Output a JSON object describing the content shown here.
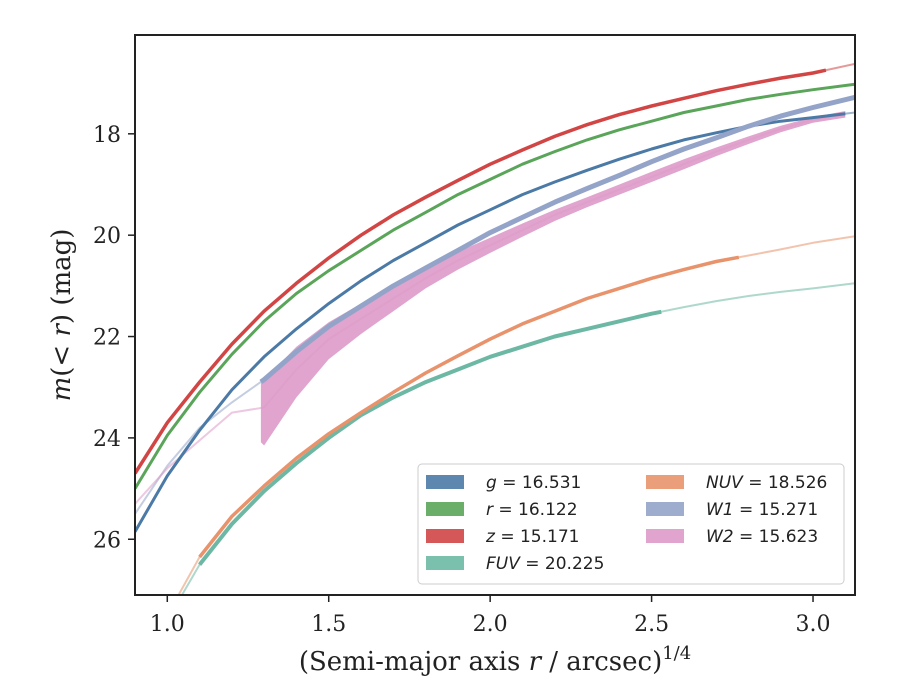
{
  "chart_data": {
    "type": "line",
    "xlabel": "(Semi-major axis r / arcsec)^{1/4}",
    "ylabel": "m(< r) (mag)",
    "xlim": [
      0.9,
      3.13
    ],
    "ylim": [
      27.1,
      16.05
    ],
    "y_inverted": true,
    "grid": false,
    "legend_position": "lower right",
    "x_ticks": [
      1.0,
      1.5,
      2.0,
      2.5,
      3.0
    ],
    "x_tick_labels": [
      "1.0",
      "1.5",
      "2.0",
      "2.5",
      "3.0"
    ],
    "y_ticks": [
      18,
      20,
      22,
      24,
      26
    ],
    "y_tick_labels": [
      "18",
      "20",
      "22",
      "24",
      "26"
    ],
    "legend_columns": 2,
    "series": [
      {
        "name": "g = 16.531",
        "legend_var": "g",
        "legend_value": "16.531",
        "color": "#4c7aa6",
        "width": 3,
        "end": 3.1,
        "x": [
          0.9,
          1.0,
          1.1,
          1.2,
          1.3,
          1.4,
          1.5,
          1.6,
          1.7,
          1.8,
          1.9,
          2.0,
          2.1,
          2.2,
          2.3,
          2.4,
          2.5,
          2.6,
          2.7,
          2.8,
          2.9,
          3.0,
          3.13
        ],
        "y": [
          25.85,
          24.75,
          23.85,
          23.05,
          22.4,
          21.85,
          21.35,
          20.9,
          20.5,
          20.15,
          19.8,
          19.5,
          19.2,
          18.95,
          18.72,
          18.5,
          18.3,
          18.12,
          17.98,
          17.85,
          17.75,
          17.68,
          17.58
        ]
      },
      {
        "name": "r = 16.122",
        "legend_var": "r",
        "legend_value": "16.122",
        "color": "#5aa55a",
        "width": 3,
        "end": 3.13,
        "x": [
          0.9,
          1.0,
          1.1,
          1.2,
          1.3,
          1.4,
          1.5,
          1.6,
          1.7,
          1.8,
          1.9,
          2.0,
          2.1,
          2.2,
          2.3,
          2.4,
          2.5,
          2.6,
          2.7,
          2.8,
          2.9,
          3.0,
          3.13
        ],
        "y": [
          25.0,
          23.95,
          23.1,
          22.35,
          21.7,
          21.15,
          20.7,
          20.3,
          19.9,
          19.55,
          19.2,
          18.9,
          18.6,
          18.35,
          18.12,
          17.92,
          17.75,
          17.58,
          17.45,
          17.32,
          17.22,
          17.13,
          17.02
        ]
      },
      {
        "name": "z = 15.171",
        "legend_var": "z",
        "legend_value": "15.171",
        "color": "#d24545",
        "width": 3.5,
        "end": 3.04,
        "x": [
          0.9,
          1.0,
          1.1,
          1.2,
          1.3,
          1.4,
          1.5,
          1.6,
          1.7,
          1.8,
          1.9,
          2.0,
          2.1,
          2.2,
          2.3,
          2.4,
          2.5,
          2.6,
          2.7,
          2.8,
          2.9,
          3.0,
          3.13
        ],
        "y": [
          24.7,
          23.7,
          22.9,
          22.15,
          21.5,
          20.95,
          20.45,
          20.0,
          19.6,
          19.25,
          18.92,
          18.6,
          18.32,
          18.05,
          17.82,
          17.62,
          17.45,
          17.3,
          17.15,
          17.02,
          16.9,
          16.8,
          16.62
        ]
      },
      {
        "name": "FUV = 20.225",
        "legend_var": "FUV",
        "legend_value": "20.225",
        "color": "#6db8a4",
        "width": 4,
        "start": 1.1,
        "end": 2.53,
        "x": [
          1.0,
          1.1,
          1.2,
          1.3,
          1.4,
          1.5,
          1.6,
          1.7,
          1.8,
          1.9,
          2.0,
          2.1,
          2.2,
          2.3,
          2.4,
          2.5,
          2.6,
          2.7,
          2.8,
          2.9,
          3.0,
          3.13
        ],
        "y": [
          27.6,
          26.5,
          25.7,
          25.05,
          24.5,
          24.0,
          23.55,
          23.2,
          22.9,
          22.65,
          22.4,
          22.2,
          22.0,
          21.85,
          21.7,
          21.55,
          21.42,
          21.3,
          21.2,
          21.12,
          21.05,
          20.95
        ]
      },
      {
        "name": "NUV = 18.526",
        "legend_var": "NUV",
        "legend_value": "18.526",
        "color": "#e8936c",
        "width": 3.5,
        "start": 1.1,
        "end": 2.77,
        "x": [
          1.0,
          1.1,
          1.2,
          1.3,
          1.4,
          1.5,
          1.6,
          1.7,
          1.8,
          1.9,
          2.0,
          2.1,
          2.2,
          2.3,
          2.4,
          2.5,
          2.6,
          2.7,
          2.8,
          2.9,
          3.0,
          3.13
        ],
        "y": [
          27.5,
          26.35,
          25.55,
          24.95,
          24.4,
          23.92,
          23.5,
          23.1,
          22.72,
          22.38,
          22.05,
          21.75,
          21.5,
          21.25,
          21.05,
          20.85,
          20.68,
          20.52,
          20.4,
          20.28,
          20.15,
          20.02
        ]
      },
      {
        "name": "W1 = 15.271",
        "legend_var": "W1",
        "legend_value": "15.271",
        "color": "#94a4c9",
        "width": 5,
        "start": 1.29,
        "x": [
          0.9,
          1.0,
          1.1,
          1.2,
          1.3,
          1.4,
          1.5,
          1.6,
          1.7,
          1.8,
          1.9,
          2.0,
          2.1,
          2.2,
          2.3,
          2.4,
          2.5,
          2.6,
          2.7,
          2.8,
          2.9,
          3.0,
          3.13
        ],
        "y": [
          25.5,
          24.55,
          23.8,
          23.3,
          22.85,
          22.3,
          21.8,
          21.4,
          21.0,
          20.65,
          20.3,
          19.95,
          19.65,
          19.35,
          19.08,
          18.82,
          18.55,
          18.3,
          18.08,
          17.85,
          17.65,
          17.48,
          17.28
        ]
      },
      {
        "name": "W2 = 15.623",
        "legend_var": "W2",
        "legend_value": "15.623",
        "color": "#dd9ac9",
        "start": 1.29,
        "end": 3.1,
        "x": [
          0.9,
          1.0,
          1.1,
          1.2,
          1.3,
          1.4,
          1.5,
          1.6,
          1.7,
          1.8,
          1.9,
          2.0,
          2.1,
          2.2,
          2.3,
          2.4,
          2.5,
          2.6,
          2.7,
          2.8,
          2.9,
          3.0,
          3.1
        ],
        "y": [
          25.3,
          24.6,
          24.05,
          23.5,
          23.4,
          22.65,
          22.05,
          21.65,
          21.25,
          20.85,
          20.5,
          20.2,
          19.9,
          19.6,
          19.35,
          19.1,
          18.85,
          18.6,
          18.35,
          18.12,
          17.9,
          17.72,
          17.6
        ],
        "band_top": [
          25.3,
          24.6,
          24.05,
          23.5,
          22.85,
          22.2,
          21.72,
          21.35,
          20.98,
          20.65,
          20.33,
          20.05,
          19.77,
          19.5,
          19.25,
          19.0,
          18.75,
          18.5,
          18.27,
          18.05,
          17.84,
          17.67,
          17.55
        ],
        "band_bottom": [
          25.3,
          24.6,
          24.05,
          23.5,
          24.15,
          23.2,
          22.45,
          21.95,
          21.5,
          21.05,
          20.68,
          20.35,
          20.03,
          19.72,
          19.45,
          19.2,
          18.95,
          18.7,
          18.44,
          18.2,
          17.97,
          17.78,
          17.68
        ]
      }
    ]
  }
}
